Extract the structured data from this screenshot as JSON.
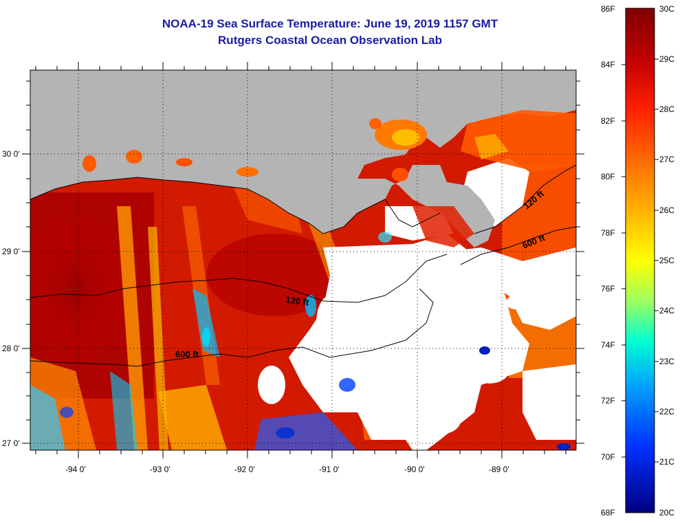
{
  "header": {
    "title": "NOAA-19 Sea Surface Temperature:  June 19, 2019 1157 GMT",
    "subtitle": "Rutgers Coastal Ocean Observation Lab"
  },
  "map": {
    "lat_labels": [
      "30 0'",
      "29 0'",
      "28 0'",
      "27 0'"
    ],
    "lon_labels": [
      "-94 0'",
      "-93 0'",
      "-92 0'",
      "-91 0'",
      "-90 0'",
      "-89 0'"
    ],
    "contour_labels": [
      "120 ft",
      "600 ft",
      "120 ft",
      "600 ft"
    ],
    "colors": {
      "land": "#b4b4b4",
      "cloud": "#ffffff",
      "contour": "#000000"
    }
  },
  "colorbar": {
    "fahrenheit_labels": [
      "86F",
      "84F",
      "82F",
      "80F",
      "78F",
      "76F",
      "74F",
      "72F",
      "70F",
      "68F"
    ],
    "celsius_labels": [
      "30C",
      "29C",
      "28C",
      "27C",
      "26C",
      "25C",
      "24C",
      "23C",
      "22C",
      "21C",
      "20C"
    ],
    "gradient": [
      "#8b0000",
      "#c80000",
      "#ff2000",
      "#ff6a00",
      "#ffb000",
      "#ffff00",
      "#7fff7f",
      "#00ffff",
      "#0080ff",
      "#0000d0",
      "#00007f"
    ]
  }
}
